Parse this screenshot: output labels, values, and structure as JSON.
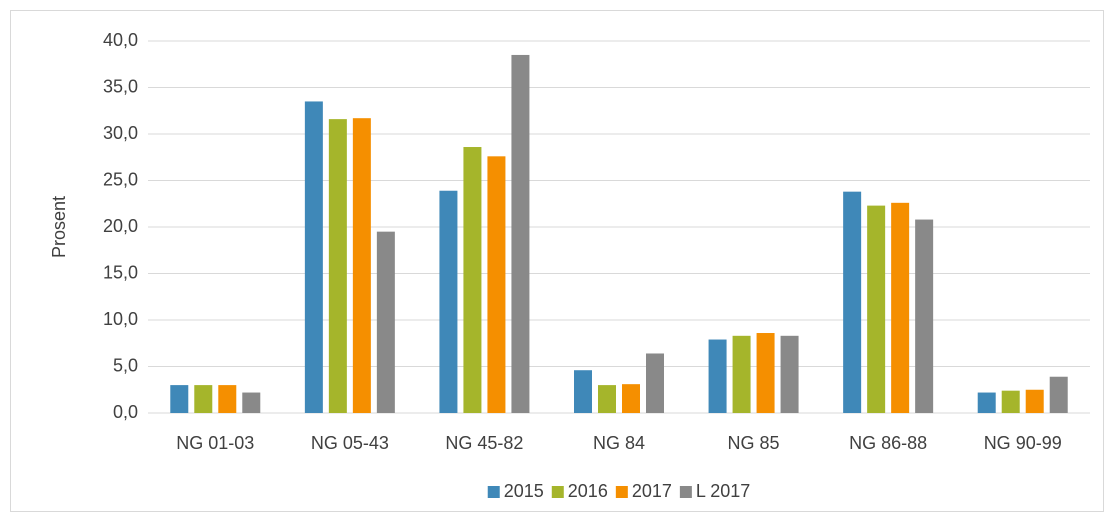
{
  "chart_data": {
    "type": "bar",
    "y_label": "Prosent",
    "categories": [
      "NG 01-03",
      "NG 05-43",
      "NG 45-82",
      "NG 84",
      "NG 85",
      "NG 86-88",
      "NG 90-99"
    ],
    "series": [
      {
        "name": "2015",
        "color": "#3f88b8",
        "values": [
          3.0,
          33.5,
          23.9,
          4.6,
          7.9,
          23.8,
          2.2
        ]
      },
      {
        "name": "2016",
        "color": "#a5b52b",
        "values": [
          3.0,
          31.6,
          28.6,
          3.0,
          8.3,
          22.3,
          2.4
        ]
      },
      {
        "name": "2017",
        "color": "#f58f00",
        "values": [
          3.0,
          31.7,
          27.6,
          3.1,
          8.6,
          22.6,
          2.5
        ]
      },
      {
        "name": "L 2017",
        "color": "#898989",
        "values": [
          2.2,
          19.5,
          38.5,
          6.4,
          8.3,
          20.8,
          3.9
        ]
      }
    ],
    "ylim": [
      0,
      40
    ],
    "yticks": [
      {
        "value": 0,
        "label": "0,0"
      },
      {
        "value": 5,
        "label": "5,0"
      },
      {
        "value": 10,
        "label": "10,0"
      },
      {
        "value": 15,
        "label": "15,0"
      },
      {
        "value": 20,
        "label": "20,0"
      },
      {
        "value": 25,
        "label": "25,0"
      },
      {
        "value": 30,
        "label": "30,0"
      },
      {
        "value": 35,
        "label": "35,0"
      },
      {
        "value": 40,
        "label": "40,0"
      }
    ],
    "grid": true,
    "legend": "bottom"
  }
}
